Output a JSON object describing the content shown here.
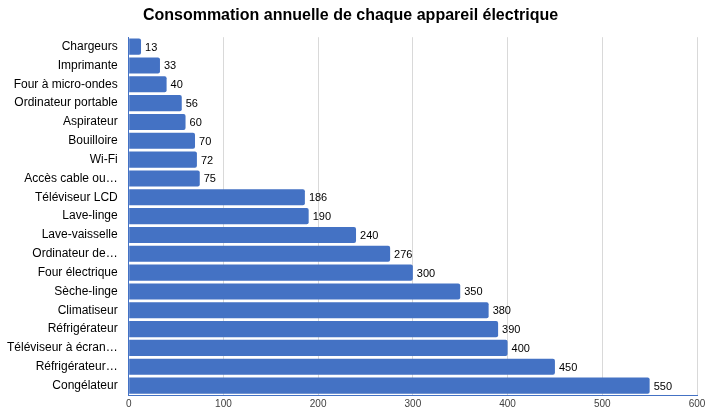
{
  "chart_data": {
    "type": "bar",
    "orientation": "horizontal",
    "title": "Consommation annuelle de chaque appareil électrique",
    "categories": [
      "Chargeurs",
      "Imprimante",
      "Four à micro-ondes",
      "Ordinateur portable",
      "Aspirateur",
      "Bouilloire",
      "Wi-Fi",
      "Accès cable ou…",
      "Téléviseur LCD",
      "Lave-linge",
      "Lave-vaisselle",
      "Ordinateur de…",
      "Four électrique",
      "Sèche-linge",
      "Climatiseur",
      "Réfrigérateur",
      "Téléviseur à écran…",
      "Réfrigérateur…",
      "Congélateur"
    ],
    "values": [
      13,
      33,
      40,
      56,
      60,
      70,
      72,
      75,
      186,
      190,
      240,
      276,
      300,
      350,
      380,
      390,
      400,
      450,
      550
    ],
    "color": "#4472c4",
    "xlim": [
      0,
      600
    ],
    "xticks": [
      0,
      100,
      200,
      300,
      400,
      500,
      600
    ],
    "grid": true,
    "data_labels": true
  }
}
